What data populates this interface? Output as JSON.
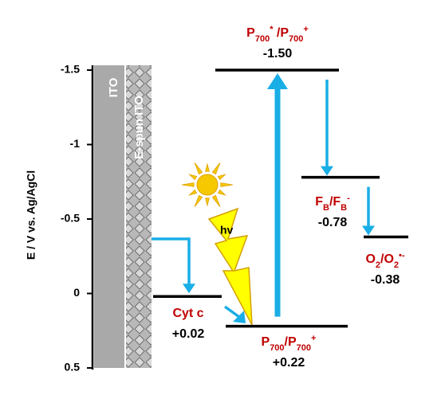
{
  "chart_data": {
    "type": "energy-diagram",
    "ylabel": "E / V vs. Ag/AgCl",
    "ylim": [
      -1.5,
      0.5
    ],
    "invert_y": true,
    "yticks": [
      -1.5,
      -1,
      -0.5,
      0,
      0.5
    ],
    "electrodes": [
      "ITO",
      "E-spun ITO"
    ],
    "light_label": "hv",
    "name_color": "#c00000",
    "line_color": "#000000",
    "arrow_color": "#1aaee6",
    "levels": [
      {
        "name": [
          {
            "text": "P"
          },
          {
            "text": "700",
            "pos": "sub"
          },
          {
            "text": "*",
            "pos": "super"
          },
          {
            "text": " /P"
          },
          {
            "text": "700",
            "pos": "sub"
          },
          {
            "text": "+",
            "pos": "super"
          }
        ],
        "value": -1.5,
        "value_label": "-1.50"
      },
      {
        "name": [
          {
            "text": "F"
          },
          {
            "text": "B",
            "pos": "sub"
          },
          {
            "text": "/F"
          },
          {
            "text": "B",
            "pos": "sub"
          },
          {
            "text": "-",
            "pos": "super"
          }
        ],
        "value": -0.78,
        "value_label": "-0.78"
      },
      {
        "name": [
          {
            "text": "O"
          },
          {
            "text": "2",
            "pos": "sub"
          },
          {
            "text": "/O"
          },
          {
            "text": "2",
            "pos": "sub"
          },
          {
            "text": "•-",
            "pos": "super"
          }
        ],
        "value": -0.38,
        "value_label": "-0.38"
      },
      {
        "name": [
          {
            "text": "Cyt c"
          }
        ],
        "value": 0.02,
        "value_label": "+0.02"
      },
      {
        "name": [
          {
            "text": "P"
          },
          {
            "text": "700",
            "pos": "sub"
          },
          {
            "text": "/P"
          },
          {
            "text": "700",
            "pos": "sub"
          },
          {
            "text": "+",
            "pos": "super"
          }
        ],
        "value": 0.22,
        "value_label": "+0.22"
      }
    ]
  }
}
